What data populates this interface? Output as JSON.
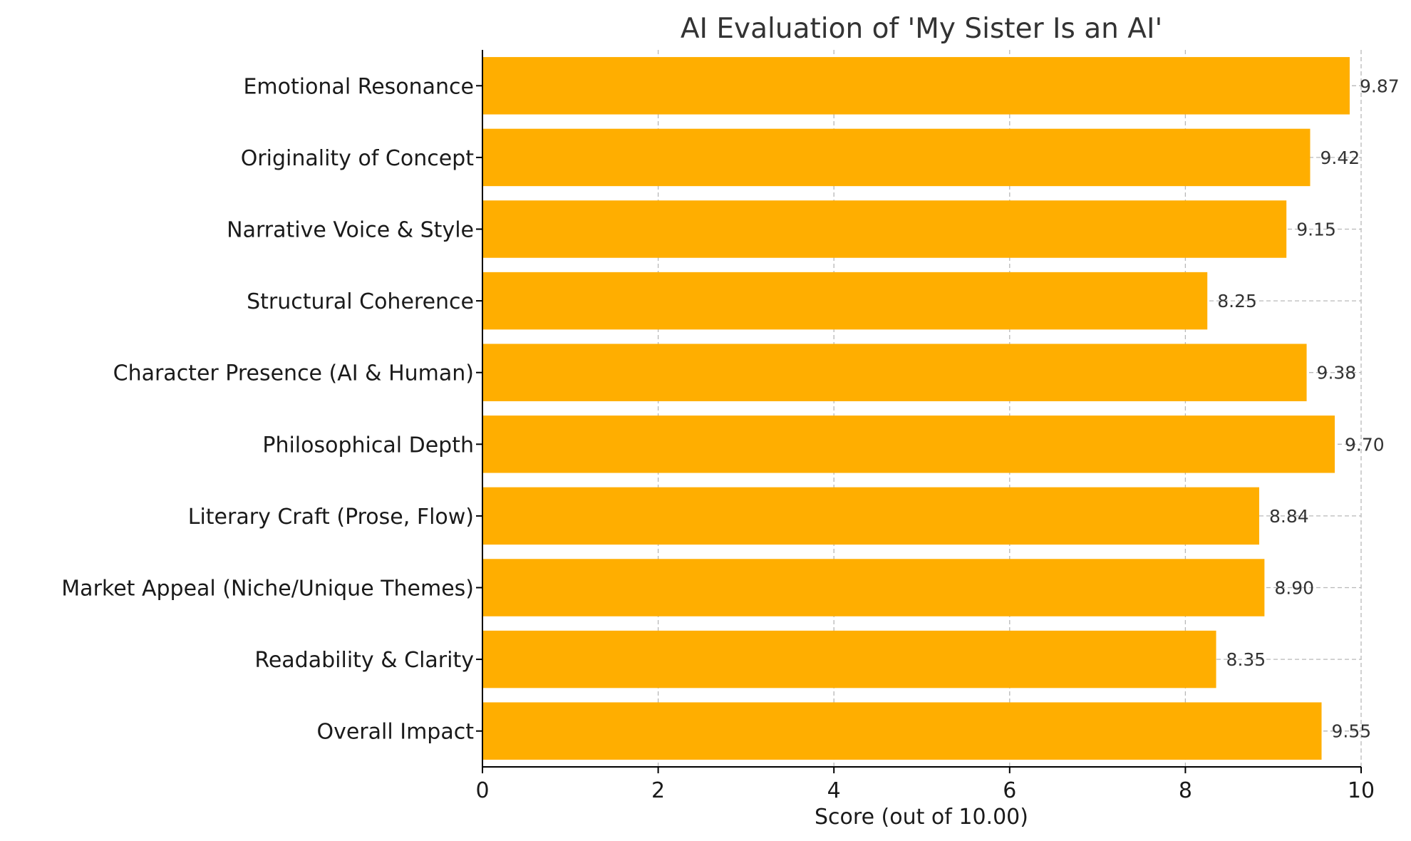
{
  "chart_data": {
    "type": "bar",
    "orientation": "horizontal",
    "title": "AI Evaluation of 'My Sister Is an AI'",
    "xlabel": "Score (out of 10.00)",
    "ylabel": "",
    "xlim": [
      0,
      10
    ],
    "xticks": [
      0,
      2,
      4,
      6,
      8,
      10
    ],
    "grid": true,
    "bar_color": "#FFAE00",
    "categories": [
      "Emotional Resonance",
      "Originality of Concept",
      "Narrative Voice & Style",
      "Structural Coherence",
      "Character Presence (AI & Human)",
      "Philosophical Depth",
      "Literary Craft (Prose, Flow)",
      "Market Appeal (Niche/Unique Themes)",
      "Readability & Clarity",
      "Overall Impact"
    ],
    "values": [
      9.87,
      9.42,
      9.15,
      8.25,
      9.38,
      9.7,
      8.84,
      8.9,
      8.35,
      9.55
    ],
    "value_labels": [
      "9.87",
      "9.42",
      "9.15",
      "8.25",
      "9.38",
      "9.70",
      "8.84",
      "8.90",
      "8.35",
      "9.55"
    ]
  }
}
